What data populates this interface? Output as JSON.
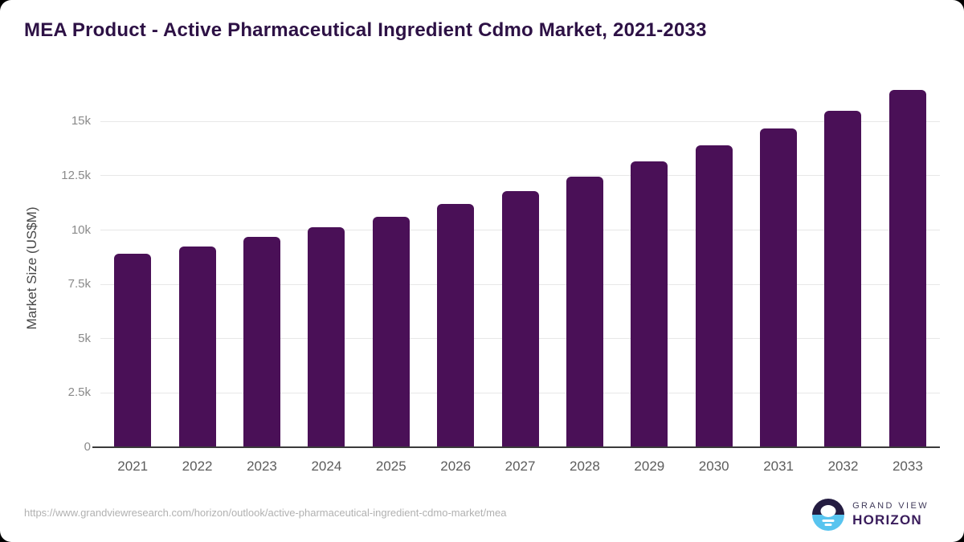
{
  "title": "MEA Product - Active Pharmaceutical Ingredient Cdmo Market, 2021-2033",
  "chart_data": {
    "type": "bar",
    "title": "MEA Product - Active Pharmaceutical Ingredient Cdmo Market, 2021-2033",
    "xlabel": "",
    "ylabel": "Market Size (US$M)",
    "categories": [
      "2021",
      "2022",
      "2023",
      "2024",
      "2025",
      "2026",
      "2027",
      "2028",
      "2029",
      "2030",
      "2031",
      "2032",
      "2033"
    ],
    "values": [
      8900,
      9250,
      9700,
      10150,
      10600,
      11200,
      11800,
      12450,
      13150,
      13900,
      14700,
      15500,
      16450
    ],
    "ylim": [
      0,
      16900
    ],
    "yticks": [
      {
        "value": 0,
        "label": "0"
      },
      {
        "value": 2500,
        "label": "2.5k"
      },
      {
        "value": 5000,
        "label": "5k"
      },
      {
        "value": 7500,
        "label": "7.5k"
      },
      {
        "value": 10000,
        "label": "10k"
      },
      {
        "value": 12500,
        "label": "12.5k"
      },
      {
        "value": 15000,
        "label": "15k"
      }
    ],
    "grid": "horizontal",
    "legend": "none",
    "bar_color": "#4a1057"
  },
  "footer": {
    "source_url": "https://www.grandviewresearch.com/horizon/outlook/active-pharmaceutical-ingredient-cdmo-market/mea",
    "logo": {
      "icon": "horizon-sunrise-icon",
      "brand_top": "GRAND VIEW",
      "brand_bottom": "HORIZON"
    }
  },
  "colors": {
    "page_bg": "#000000",
    "card_bg": "#ffffff",
    "title": "#2d1145",
    "bar": "#4a1057",
    "gridline": "#e7e7e7",
    "axis_line": "#3a3a3a",
    "tick_label": "#8a8a8a",
    "x_label": "#5c5c5c",
    "y_axis_title": "#474747",
    "url_text": "#b1b1b1",
    "logo_dark": "#241c41",
    "logo_blue": "#58c4ef"
  }
}
